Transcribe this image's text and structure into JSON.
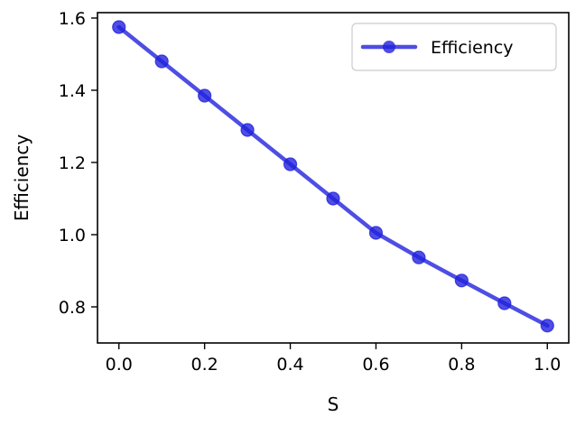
{
  "chart_data": {
    "type": "line",
    "title": "",
    "xlabel": "S",
    "ylabel": "Efficiency",
    "xlim": [
      -0.05,
      1.05
    ],
    "ylim": [
      0.7,
      1.615
    ],
    "xticks": [
      0.0,
      0.2,
      0.4,
      0.6,
      0.8,
      1.0
    ],
    "xtick_labels": [
      "0.0",
      "0.2",
      "0.4",
      "0.6",
      "0.8",
      "1.0"
    ],
    "yticks": [
      0.8,
      1.0,
      1.2,
      1.4,
      1.6
    ],
    "ytick_labels": [
      "0.8",
      "1.0",
      "1.2",
      "1.4",
      "1.6"
    ],
    "grid": false,
    "legend_position": "top-right",
    "series": [
      {
        "name": "Efficiency",
        "color": "#2222dd",
        "marker": "circle",
        "x": [
          0.0,
          0.1,
          0.2,
          0.3,
          0.4,
          0.5,
          0.6,
          0.7,
          0.8,
          0.9,
          1.0
        ],
        "y": [
          1.575,
          1.48,
          1.385,
          1.29,
          1.195,
          1.1,
          1.005,
          0.937,
          0.873,
          0.81,
          0.748
        ]
      }
    ]
  }
}
